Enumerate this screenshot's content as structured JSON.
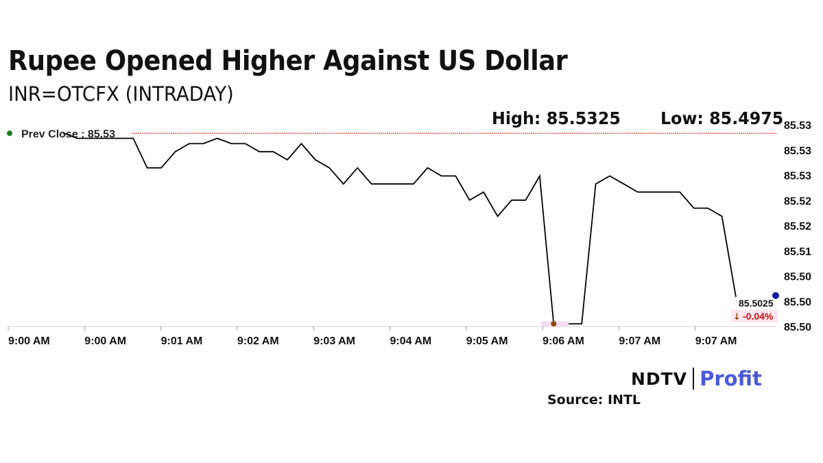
{
  "header": {
    "title": "Rupee Opened Higher Against US Dollar",
    "subtitle": "INR=OTCFX (INTRADAY)",
    "high": "High: 85.5325",
    "low": "Low: 85.4975"
  },
  "footer": {
    "brand_left": "NDTV",
    "brand_right": "Profit",
    "source": "Source: INTL"
  },
  "colors": {
    "line": "#000000",
    "prev_close_line": "#d01010",
    "prev_close_dot": "#1a7a1a",
    "low_marker": "#8a4a10",
    "last_marker": "#1a1aa0",
    "change_negative": "#c81010",
    "brand_accent": "#4a5ad8"
  },
  "chart_data": {
    "type": "line",
    "title": "Rupee Opened Higher Against US Dollar",
    "subtitle": "INR=OTCFX (INTRADAY)",
    "xlabel": "",
    "ylabel": "",
    "x_tick_labels": [
      "9:00 AM",
      "9:00 AM",
      "9:01 AM",
      "9:02 AM",
      "9:03 AM",
      "9:04 AM",
      "9:05 AM",
      "9:06 AM",
      "9:07 AM",
      "9:07 AM"
    ],
    "y_tick_labels": [
      "85.53",
      "85.53",
      "85.53",
      "85.52",
      "85.52",
      "85.51",
      "85.50",
      "85.50",
      "85.50"
    ],
    "ylim": [
      85.497,
      85.5345
    ],
    "prev_close": {
      "label": "Prev Close : 85.53",
      "value": 85.533
    },
    "last": {
      "value_label": "85.5025",
      "change_label": "-0.04%",
      "direction": "down"
    },
    "values": [
      85.533,
      85.532,
      85.532,
      85.532,
      85.532,
      85.532,
      85.5265,
      85.5265,
      85.5295,
      85.531,
      85.531,
      85.532,
      85.531,
      85.531,
      85.5295,
      85.5295,
      85.528,
      85.531,
      85.528,
      85.5265,
      85.5235,
      85.5265,
      85.5235,
      85.5235,
      85.5235,
      85.5235,
      85.5265,
      85.525,
      85.525,
      85.5205,
      85.522,
      85.5175,
      85.5205,
      85.5205,
      85.525,
      85.4975,
      85.4975,
      85.4975,
      85.5235,
      85.525,
      85.5235,
      85.522,
      85.522,
      85.522,
      85.522,
      85.519,
      85.519,
      85.5175
    ],
    "last_point": 85.5025,
    "grid": false,
    "legend": "none"
  }
}
